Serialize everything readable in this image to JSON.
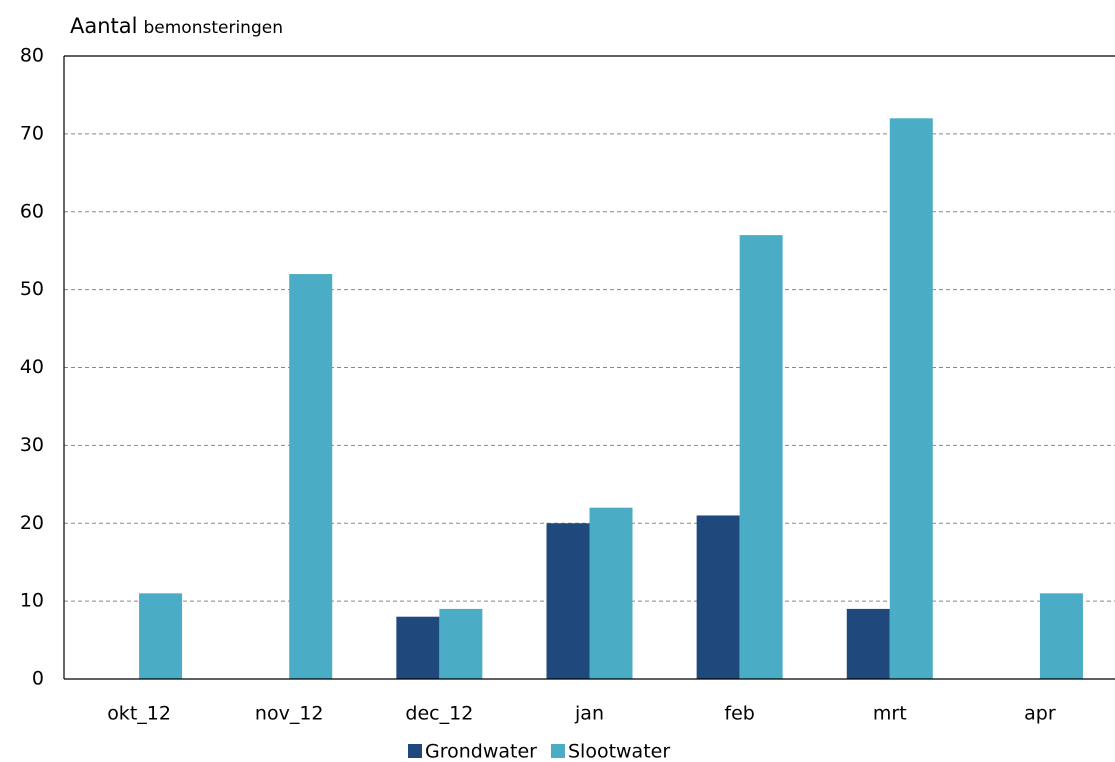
{
  "chart_data": {
    "type": "bar",
    "ylabel": [
      "Aantal",
      "bemonsteringen"
    ],
    "categories": [
      "okt_12",
      "nov_12",
      "dec_12",
      "jan",
      "feb",
      "mrt",
      "apr"
    ],
    "series": [
      {
        "name": "Grondwater",
        "color": "#1f497d",
        "values": [
          0,
          0,
          8,
          20,
          21,
          9,
          0
        ]
      },
      {
        "name": "Slootwater",
        "color": "#4bacc6",
        "values": [
          11,
          52,
          9,
          22,
          57,
          72,
          11
        ]
      }
    ],
    "ylim": [
      0,
      80
    ],
    "yticks": [
      0,
      10,
      20,
      30,
      40,
      50,
      60,
      70,
      80
    ],
    "grid": true,
    "legend": "bottom"
  }
}
